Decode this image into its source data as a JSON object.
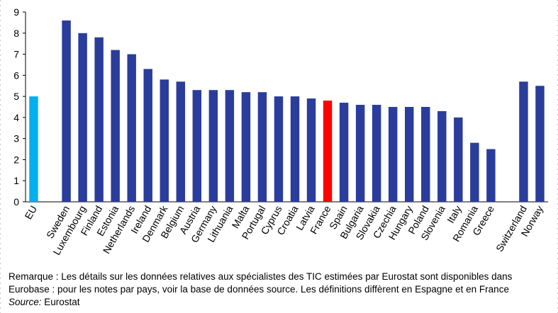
{
  "chart_data": {
    "type": "bar",
    "categories": [
      "EU",
      "",
      "Sweden",
      "Luxembourg",
      "Finland",
      "Estonia",
      "Netherlands",
      "Ireland",
      "Denmark",
      "Belgium",
      "Austria",
      "Germany",
      "Lithuania",
      "Malta",
      "Portugal",
      "Cyprus",
      "Croatia",
      "Latvia",
      "France",
      "Spain",
      "Bulgaria",
      "Slovakia",
      "Czechia",
      "Hungary",
      "Poland",
      "Slovenia",
      "Italy",
      "Romania",
      "Greece",
      "",
      "Switzerland",
      "Norway"
    ],
    "values": [
      5.0,
      null,
      8.6,
      8.0,
      7.8,
      7.2,
      7.0,
      6.3,
      5.8,
      5.7,
      5.3,
      5.3,
      5.3,
      5.2,
      5.2,
      5.0,
      5.0,
      4.9,
      4.8,
      4.7,
      4.6,
      4.6,
      4.5,
      4.5,
      4.5,
      4.3,
      4.0,
      2.8,
      2.5,
      null,
      5.7,
      5.5
    ],
    "ylim": [
      0,
      9
    ],
    "yticks": [
      0,
      1,
      2,
      3,
      4,
      5,
      6,
      7,
      8,
      9
    ],
    "grid": false,
    "legend": "none",
    "colors": {
      "default": "#2a3d9c",
      "EU": "#00b0f0",
      "France": "#ff0000",
      "axis": "#000000"
    }
  },
  "footnote": {
    "line1": "Remarque : Les détails sur les données relatives aux spécialistes des TIC estimées par Eurostat sont disponibles dans",
    "line2": "Eurobase : pour les notes par pays, voir la base de données source. Les définitions diffèrent en Espagne et en France",
    "source_label": "Source:",
    "source_value": " Eurostat"
  }
}
